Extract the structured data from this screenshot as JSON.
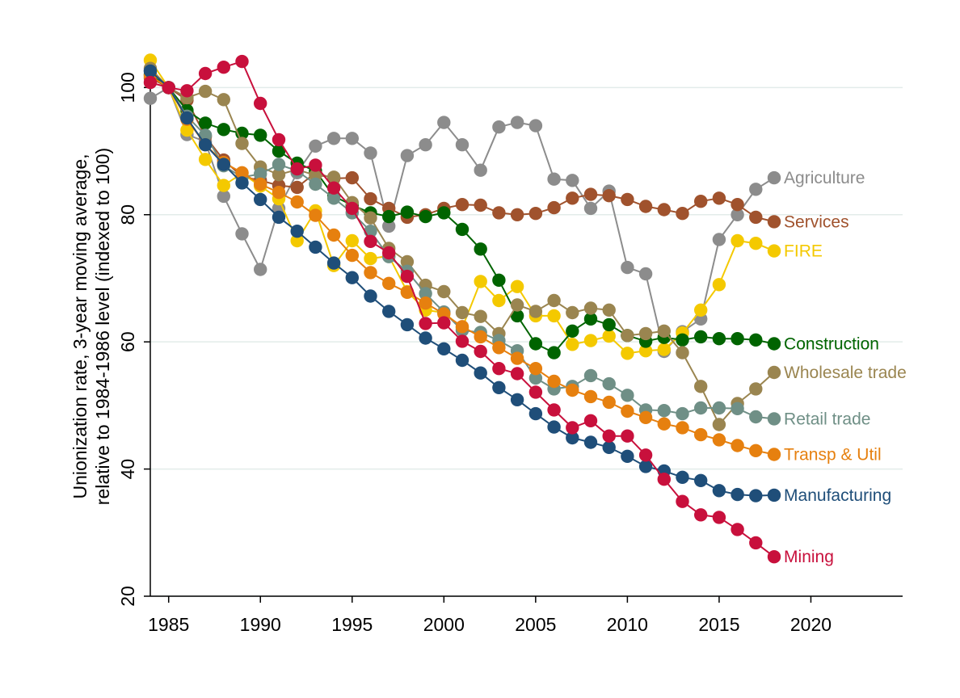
{
  "chart_data": {
    "type": "line",
    "title": "",
    "xlabel": "",
    "ylabel_lines": [
      "Unionization rate, 3-year moving average,",
      "relative to 1984-1986 level (indexed to 100)"
    ],
    "xlim": [
      1984,
      2025
    ],
    "ylim": [
      20,
      105
    ],
    "xticks": [
      "1985",
      "1990",
      "1995",
      "2000",
      "2005",
      "2010",
      "2015",
      "2020"
    ],
    "yticks": [
      "20",
      "40",
      "60",
      "80",
      "100"
    ],
    "grid": "horizontal",
    "legend": "direct labels at right end of each series",
    "x": [
      1984,
      1985,
      1986,
      1987,
      1988,
      1989,
      1990,
      1991,
      1992,
      1993,
      1994,
      1995,
      1996,
      1997,
      1998,
      1999,
      2000,
      2001,
      2002,
      2003,
      2004,
      2005,
      2006,
      2007,
      2008,
      2009,
      2010,
      2011,
      2012,
      2013,
      2014,
      2015,
      2016,
      2017,
      2018
    ],
    "series": [
      {
        "name": "Agriculture",
        "color": "#8c8c8c",
        "values": [
          98.3,
          100,
          92.6,
          91.5,
          82.9,
          77,
          71.4,
          81,
          86.6,
          90.8,
          92,
          92,
          89.7,
          78.2,
          89.3,
          91,
          94.5,
          91,
          87,
          93.8,
          94.5,
          94,
          85.6,
          85.4,
          81,
          83.7,
          71.7,
          70.7,
          58.5,
          61.6,
          63.6,
          76.1,
          80,
          84,
          85.8
        ]
      },
      {
        "name": "Services",
        "color": "#a0522d",
        "values": [
          101.5,
          100,
          98,
          92.3,
          88.6,
          86,
          85.4,
          84.6,
          84.3,
          86.6,
          85.7,
          85.8,
          82.5,
          81,
          79.6,
          80,
          81,
          81.6,
          81.5,
          80.3,
          80,
          80.2,
          81.1,
          82.6,
          83.2,
          83,
          82.4,
          81.3,
          80.8,
          80.2,
          82.1,
          82.6,
          81.6,
          79.6,
          78.9
        ]
      },
      {
        "name": "FIRE",
        "color": "#f4c900",
        "values": [
          104.3,
          100,
          93.3,
          88.7,
          84.6,
          86.5,
          84.5,
          82.5,
          75.9,
          80.6,
          72,
          75.9,
          73.1,
          73.5,
          67.9,
          65,
          64.6,
          62.2,
          69.5,
          66.5,
          68.7,
          64.1,
          64.1,
          59.6,
          60.2,
          60.9,
          58.2,
          58.6,
          58.8,
          61.4,
          65,
          69,
          75.9,
          75.5,
          74.3
        ]
      },
      {
        "name": "Construction",
        "color": "#006400",
        "values": [
          102,
          100,
          96.4,
          94.4,
          93.4,
          92.8,
          92.5,
          90,
          88.1,
          86.9,
          82.9,
          81.5,
          80.3,
          79.7,
          80.4,
          79.7,
          80.3,
          77.7,
          74.6,
          69.7,
          64.1,
          59.7,
          58.3,
          61.7,
          63.6,
          62.7,
          61,
          60.1,
          60.7,
          60.3,
          60.8,
          60.5,
          60.5,
          60.3,
          59.7
        ]
      },
      {
        "name": "Wholesale trade",
        "color": "#9a8550",
        "values": [
          103,
          100,
          98.4,
          99.4,
          98.1,
          91.2,
          87.5,
          86.3,
          87.1,
          86.2,
          85.9,
          81.9,
          79.5,
          74.7,
          72.6,
          68.9,
          67.9,
          64.6,
          64,
          61.3,
          65.8,
          64.8,
          66.5,
          64.6,
          65.3,
          65,
          61,
          61.3,
          61.7,
          58.3,
          53,
          47,
          50.3,
          52.6,
          55.2
        ]
      },
      {
        "name": "Retail trade",
        "color": "#6f8f86",
        "values": [
          102.6,
          100,
          95.5,
          92.5,
          87.7,
          85.9,
          86.4,
          87.9,
          86.9,
          84.8,
          82.6,
          80.3,
          77.4,
          73.4,
          71.1,
          67.6,
          64.7,
          61.8,
          61.5,
          60.2,
          58.6,
          54.3,
          52.6,
          53,
          54.7,
          53.4,
          51.6,
          49.3,
          49.2,
          48.7,
          49.6,
          49.6,
          49.5,
          48.2,
          47.9
        ]
      },
      {
        "name": "Transp & Util",
        "color": "#e6800f",
        "values": [
          101.8,
          100,
          95,
          91,
          88.2,
          86.6,
          84.8,
          83.5,
          82,
          79.9,
          76.8,
          73.6,
          70.9,
          69.2,
          67.8,
          66.1,
          64.4,
          62.4,
          60.8,
          59.1,
          57.4,
          55.8,
          53.8,
          52.4,
          51.4,
          50.5,
          49.1,
          48.1,
          47.1,
          46.5,
          45.4,
          44.6,
          43.7,
          42.9,
          42.3
        ]
      },
      {
        "name": "Manufacturing",
        "color": "#1f4e79",
        "values": [
          102.6,
          100,
          95.2,
          91,
          87.9,
          85,
          82.4,
          79.6,
          77.4,
          74.9,
          72.4,
          70.1,
          67.2,
          64.8,
          62.7,
          60.6,
          58.9,
          57.1,
          55.1,
          52.8,
          50.9,
          48.7,
          46.6,
          44.9,
          44.2,
          43.4,
          42,
          40.4,
          39.7,
          38.7,
          38.2,
          36.6,
          36,
          35.8,
          35.9
        ]
      },
      {
        "name": "Mining",
        "color": "#c8103c",
        "values": [
          100.8,
          100,
          99.5,
          102.2,
          103.2,
          104.1,
          97.5,
          91.8,
          87.2,
          87.8,
          84.2,
          81,
          75.8,
          74,
          70.3,
          62.9,
          63,
          60.1,
          58.5,
          55.8,
          55,
          52.1,
          49.3,
          46.5,
          47.6,
          45.2,
          45.2,
          42.2,
          38.4,
          34.9,
          32.8,
          32.4,
          30.5,
          28.4,
          26.2
        ]
      }
    ],
    "end_labels": [
      {
        "text": "Agriculture",
        "y": 85.8
      },
      {
        "text": "Services",
        "y": 78.9
      },
      {
        "text": "FIRE",
        "y": 74.3
      },
      {
        "text": "Construction",
        "y": 59.7
      },
      {
        "text": "Wholesale trade",
        "y": 55.2
      },
      {
        "text": "Retail trade",
        "y": 47.9
      },
      {
        "text": "Transp & Util",
        "y": 42.3
      },
      {
        "text": "Manufacturing",
        "y": 35.9
      },
      {
        "text": "Mining",
        "y": 26.2
      }
    ]
  }
}
